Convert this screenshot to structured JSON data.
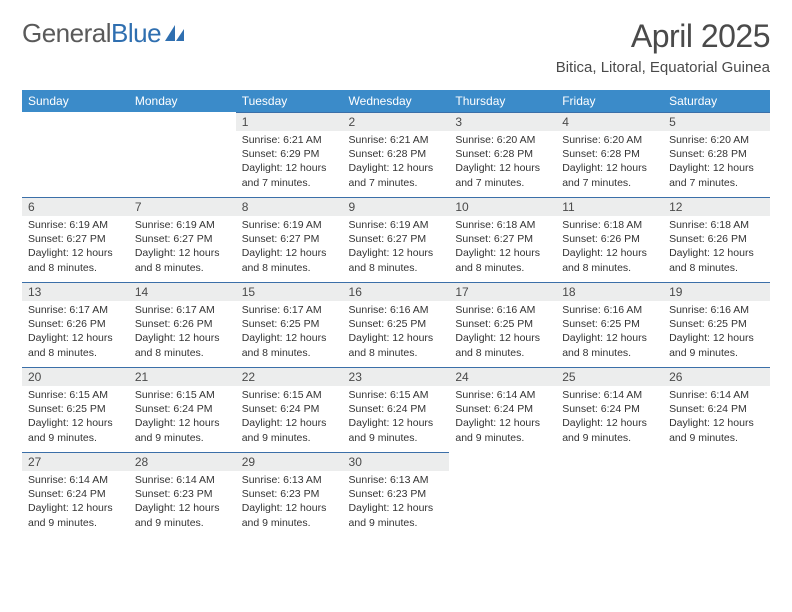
{
  "logo": {
    "text1": "General",
    "text2": "Blue",
    "color1": "#5a5a5a",
    "color2": "#2f6fb0",
    "sail_color": "#2f6fb0"
  },
  "title": "April 2025",
  "location": "Bitica, Litoral, Equatorial Guinea",
  "header_bg": "#3b8bc9",
  "header_fg": "#ffffff",
  "daynum_bg": "#eceded",
  "daynum_border": "#3b6fa8",
  "columns": [
    "Sunday",
    "Monday",
    "Tuesday",
    "Wednesday",
    "Thursday",
    "Friday",
    "Saturday"
  ],
  "weeks": [
    [
      null,
      null,
      {
        "n": "1",
        "sr": "6:21 AM",
        "ss": "6:29 PM",
        "dl": "12 hours and 7 minutes."
      },
      {
        "n": "2",
        "sr": "6:21 AM",
        "ss": "6:28 PM",
        "dl": "12 hours and 7 minutes."
      },
      {
        "n": "3",
        "sr": "6:20 AM",
        "ss": "6:28 PM",
        "dl": "12 hours and 7 minutes."
      },
      {
        "n": "4",
        "sr": "6:20 AM",
        "ss": "6:28 PM",
        "dl": "12 hours and 7 minutes."
      },
      {
        "n": "5",
        "sr": "6:20 AM",
        "ss": "6:28 PM",
        "dl": "12 hours and 7 minutes."
      }
    ],
    [
      {
        "n": "6",
        "sr": "6:19 AM",
        "ss": "6:27 PM",
        "dl": "12 hours and 8 minutes."
      },
      {
        "n": "7",
        "sr": "6:19 AM",
        "ss": "6:27 PM",
        "dl": "12 hours and 8 minutes."
      },
      {
        "n": "8",
        "sr": "6:19 AM",
        "ss": "6:27 PM",
        "dl": "12 hours and 8 minutes."
      },
      {
        "n": "9",
        "sr": "6:19 AM",
        "ss": "6:27 PM",
        "dl": "12 hours and 8 minutes."
      },
      {
        "n": "10",
        "sr": "6:18 AM",
        "ss": "6:27 PM",
        "dl": "12 hours and 8 minutes."
      },
      {
        "n": "11",
        "sr": "6:18 AM",
        "ss": "6:26 PM",
        "dl": "12 hours and 8 minutes."
      },
      {
        "n": "12",
        "sr": "6:18 AM",
        "ss": "6:26 PM",
        "dl": "12 hours and 8 minutes."
      }
    ],
    [
      {
        "n": "13",
        "sr": "6:17 AM",
        "ss": "6:26 PM",
        "dl": "12 hours and 8 minutes."
      },
      {
        "n": "14",
        "sr": "6:17 AM",
        "ss": "6:26 PM",
        "dl": "12 hours and 8 minutes."
      },
      {
        "n": "15",
        "sr": "6:17 AM",
        "ss": "6:25 PM",
        "dl": "12 hours and 8 minutes."
      },
      {
        "n": "16",
        "sr": "6:16 AM",
        "ss": "6:25 PM",
        "dl": "12 hours and 8 minutes."
      },
      {
        "n": "17",
        "sr": "6:16 AM",
        "ss": "6:25 PM",
        "dl": "12 hours and 8 minutes."
      },
      {
        "n": "18",
        "sr": "6:16 AM",
        "ss": "6:25 PM",
        "dl": "12 hours and 8 minutes."
      },
      {
        "n": "19",
        "sr": "6:16 AM",
        "ss": "6:25 PM",
        "dl": "12 hours and 9 minutes."
      }
    ],
    [
      {
        "n": "20",
        "sr": "6:15 AM",
        "ss": "6:25 PM",
        "dl": "12 hours and 9 minutes."
      },
      {
        "n": "21",
        "sr": "6:15 AM",
        "ss": "6:24 PM",
        "dl": "12 hours and 9 minutes."
      },
      {
        "n": "22",
        "sr": "6:15 AM",
        "ss": "6:24 PM",
        "dl": "12 hours and 9 minutes."
      },
      {
        "n": "23",
        "sr": "6:15 AM",
        "ss": "6:24 PM",
        "dl": "12 hours and 9 minutes."
      },
      {
        "n": "24",
        "sr": "6:14 AM",
        "ss": "6:24 PM",
        "dl": "12 hours and 9 minutes."
      },
      {
        "n": "25",
        "sr": "6:14 AM",
        "ss": "6:24 PM",
        "dl": "12 hours and 9 minutes."
      },
      {
        "n": "26",
        "sr": "6:14 AM",
        "ss": "6:24 PM",
        "dl": "12 hours and 9 minutes."
      }
    ],
    [
      {
        "n": "27",
        "sr": "6:14 AM",
        "ss": "6:24 PM",
        "dl": "12 hours and 9 minutes."
      },
      {
        "n": "28",
        "sr": "6:14 AM",
        "ss": "6:23 PM",
        "dl": "12 hours and 9 minutes."
      },
      {
        "n": "29",
        "sr": "6:13 AM",
        "ss": "6:23 PM",
        "dl": "12 hours and 9 minutes."
      },
      {
        "n": "30",
        "sr": "6:13 AM",
        "ss": "6:23 PM",
        "dl": "12 hours and 9 minutes."
      },
      null,
      null,
      null
    ]
  ],
  "labels": {
    "sunrise": "Sunrise:",
    "sunset": "Sunset:",
    "daylight": "Daylight:"
  }
}
